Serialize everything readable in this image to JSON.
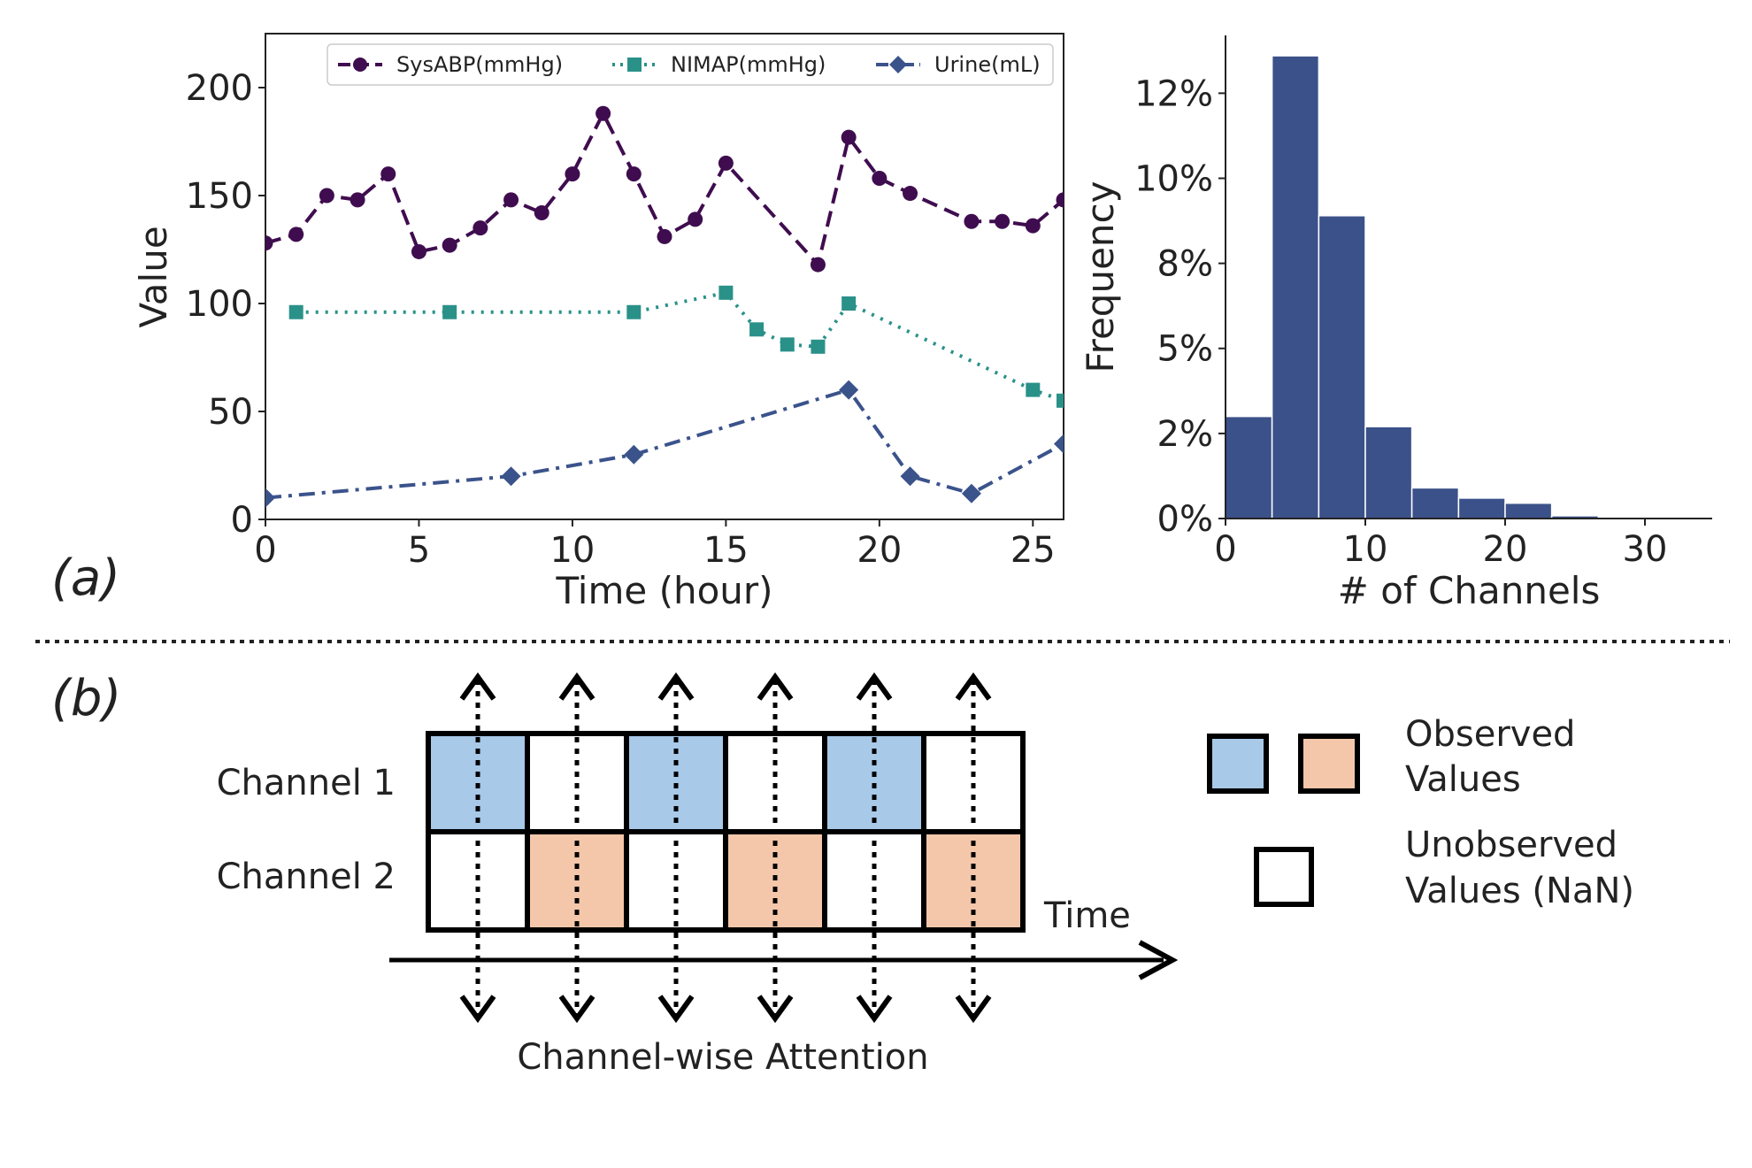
{
  "panel_labels": {
    "a": "(a)",
    "b": "(b)"
  },
  "chart_data": [
    {
      "type": "line",
      "xlabel": "Time (hour)",
      "ylabel": "Value",
      "xlim": [
        0,
        26
      ],
      "ylim": [
        0,
        225
      ],
      "x_ticks": [
        0,
        5,
        10,
        15,
        20,
        25
      ],
      "y_ticks": [
        0,
        50,
        100,
        150,
        200
      ],
      "series": [
        {
          "name": "SysABP(mmHg)",
          "color": "#3f0d4f",
          "marker": "circle",
          "dash": "dashed",
          "x": [
            0,
            1,
            2,
            3,
            4,
            5,
            6,
            7,
            8,
            9,
            10,
            11,
            12,
            13,
            14,
            15,
            18,
            19,
            20,
            21,
            23,
            24,
            25,
            26
          ],
          "y": [
            128,
            132,
            150,
            148,
            160,
            124,
            127,
            135,
            148,
            142,
            160,
            188,
            160,
            131,
            139,
            165,
            118,
            177,
            158,
            151,
            138,
            138,
            136,
            148
          ]
        },
        {
          "name": "NIMAP(mmHg)",
          "color": "#2a9189",
          "marker": "square",
          "dash": "dotted",
          "x": [
            1,
            6,
            12,
            15,
            16,
            17,
            18,
            19,
            25,
            26
          ],
          "y": [
            96,
            96,
            96,
            105,
            88,
            81,
            80,
            100,
            60,
            55
          ]
        },
        {
          "name": "Urine(mL)",
          "color": "#3b538b",
          "marker": "diamond",
          "dash": "dashdot",
          "x": [
            0,
            8,
            12,
            19,
            21,
            23,
            26
          ],
          "y": [
            10,
            20,
            30,
            60,
            20,
            12,
            35
          ]
        }
      ]
    },
    {
      "type": "bar",
      "subtype": "histogram",
      "xlabel": "# of Channels",
      "ylabel": "Frequency",
      "xlim": [
        0,
        35
      ],
      "ylim": [
        0,
        14.2
      ],
      "x_ticks": [
        0,
        10,
        20,
        30
      ],
      "y_ticks": [
        0,
        2.5,
        5,
        7.5,
        10,
        12.5
      ],
      "y_tick_labels": [
        "0%",
        "2%",
        "5%",
        "8%",
        "10%",
        "12%"
      ],
      "color": "#3b5189",
      "bin_edges": [
        0,
        3.33,
        6.67,
        10,
        13.33,
        16.67,
        20,
        23.33,
        26.67,
        30,
        33.33
      ],
      "values": [
        3.0,
        13.6,
        8.9,
        2.7,
        0.9,
        0.6,
        0.45,
        0.08,
        0.02,
        0.01
      ]
    }
  ],
  "diagram": {
    "channel_labels": [
      "Channel 1",
      "Channel 2"
    ],
    "time_label": "Time",
    "attention_label": "Channel-wise Attention",
    "row1_cells": [
      "blue",
      "white",
      "blue",
      "white",
      "blue",
      "white"
    ],
    "row2_cells": [
      "white",
      "orange",
      "white",
      "orange",
      "white",
      "orange"
    ],
    "colors": {
      "blue": "#a8c9e8",
      "orange": "#f4c7aa",
      "white": "#ffffff"
    },
    "legend": {
      "observed_line1": "Observed",
      "observed_line2": "Values",
      "unobserved_line1": "Unobserved",
      "unobserved_line2": "Values (NaN)"
    }
  }
}
